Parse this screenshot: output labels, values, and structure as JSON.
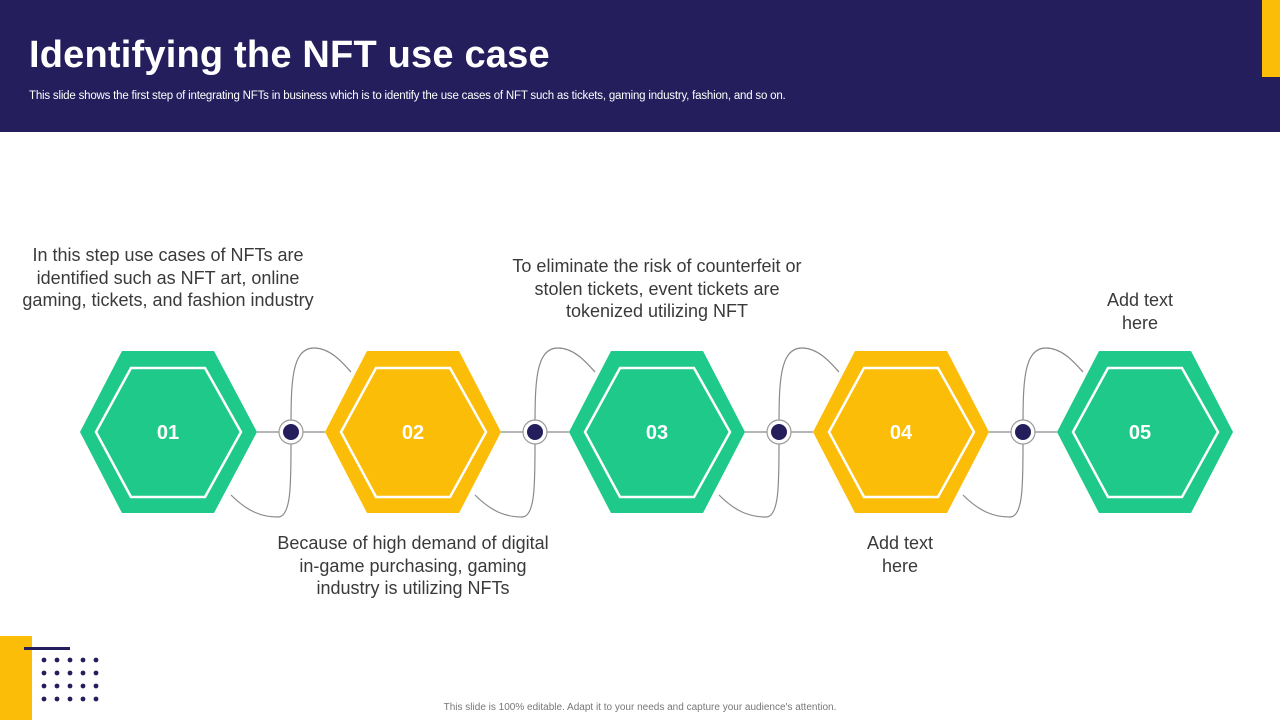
{
  "slide": {
    "title": "Identifying the NFT use case",
    "subtitle": "This slide shows the first step of integrating NFTs in business which is to identify the use cases of NFT  such as tickets, gaming industry, fashion, and so on.",
    "footer": "This slide is 100% editable. Adapt it to your needs and capture your audience's attention."
  },
  "colors": {
    "header_bg": "#241e5c",
    "green": "#1ec98a",
    "yellow": "#fbbd08",
    "connector": "#241e5c"
  },
  "steps": [
    {
      "number": "01",
      "color": "green",
      "text": "In this step use cases of NFTs are identified such as NFT art, online gaming, tickets, and fashion industry"
    },
    {
      "number": "02",
      "color": "yellow",
      "text": "Because of high demand of digital in-game purchasing, gaming industry is utilizing NFTs"
    },
    {
      "number": "03",
      "color": "green",
      "text": "To eliminate the risk of counterfeit or stolen tickets, event tickets are tokenized utilizing NFT"
    },
    {
      "number": "04",
      "color": "yellow",
      "text": "Add text here"
    },
    {
      "number": "05",
      "color": "green",
      "text": "Add text here"
    }
  ]
}
